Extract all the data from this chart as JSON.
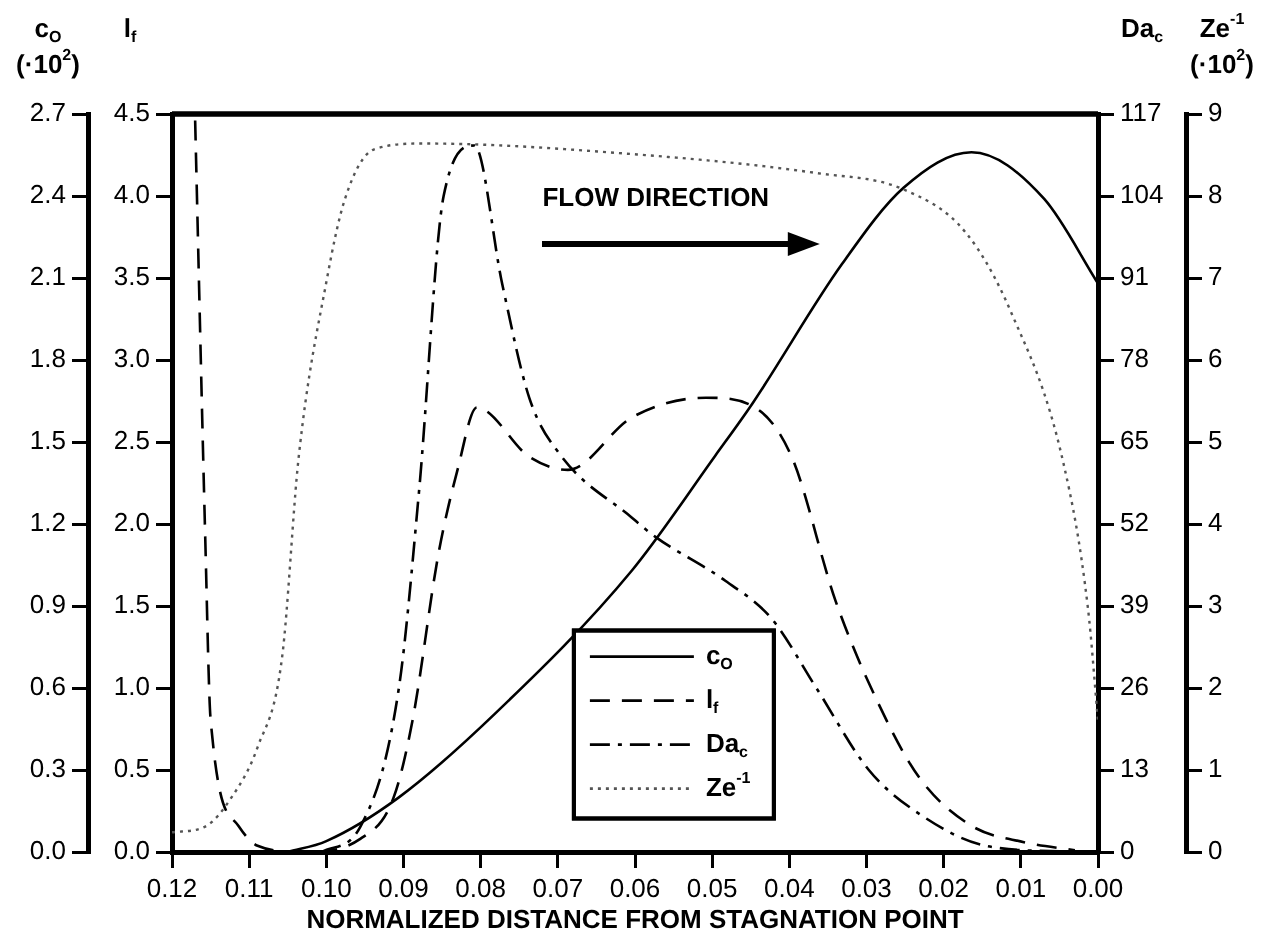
{
  "chart_data": [
    {
      "type": "line",
      "xlabel": "NORMALIZED DISTANCE FROM STAGNATION POINT",
      "ylabel": "c$_{O}$\n(·10$^{2}$)",
      "y2label": "l$_{f}$",
      "xlim": [
        0.12,
        0.0
      ],
      "xticks": [
        0.12,
        0.11,
        {
          "value": 0.1,
          "label": "0.10"
        },
        0.09,
        0.08,
        0.07,
        0.06,
        0.05,
        0.04,
        0.03,
        0.02,
        0.01,
        {
          "value": 0,
          "label": "0.00"
        }
      ],
      "ylim": [
        0,
        2.7
      ],
      "yticks": [
        {
          "value": 0,
          "label": "0.0"
        },
        0.3,
        0.6,
        0.9,
        1.2,
        1.5,
        1.8,
        2.1,
        2.4,
        2.7
      ],
      "y2lim": [
        0,
        4.5
      ],
      "y2ticks": [
        {
          "value": 0,
          "label": "0.0"
        },
        0.5,
        {
          "value": 1,
          "label": "1.0"
        },
        1.5,
        {
          "value": 2,
          "label": "2.0"
        },
        2.5,
        {
          "value": 3,
          "label": "3.0"
        },
        3.5,
        {
          "value": 4,
          "label": "4.0"
        },
        4.5
      ],
      "grid": false,
      "legend": "bottom",
      "marker": "none",
      "annotations": [
        "FLOW DIRECTION"
      ],
      "series": [
        {
          "name": "c$_{O}$",
          "color": "#000000",
          "line_style": "solid",
          "x": [
            0.105,
            0.1,
            0.0906,
            0.078,
            0.0604,
            0.0496,
            0.0448,
            0.0332,
            0.0252,
            0.0164,
            0.007,
            0
          ],
          "values": [
            0,
            0.04,
            0.2,
            0.51,
            1.03,
            1.45,
            1.64,
            2.15,
            2.43,
            2.56,
            2.39,
            2.08
          ]
        },
        {
          "name": "l$_{f}$",
          "color": "#000000",
          "line_style": "dashed",
          "axis": "y2",
          "x": [
            0.117,
            0.1157,
            0.115,
            0.1114,
            0.109,
            0.103,
            0.0956,
            0.0913,
            0.0888,
            0.0855,
            0.083,
            0.0805,
            0.0737,
            0.0687,
            0.0604,
            0.0508,
            0.0448,
            0.0397,
            0.034,
            0.0282,
            0.0231,
            0.0164,
            0.0096,
            0.003
          ],
          "values": [
            4.46,
            1.93,
            0.81,
            0.16,
            0.04,
            0,
            0.08,
            0.33,
            0.81,
            1.81,
            2.33,
            2.71,
            2.41,
            2.33,
            2.65,
            2.77,
            2.72,
            2.41,
            1.53,
            0.88,
            0.45,
            0.16,
            0.06,
            0.01
          ]
        }
      ]
    },
    {
      "type": "line",
      "ylabel": "Da$_{c}$",
      "y2label": "Ze$^{-1}$\n(·10$^{2}$)",
      "tick_labels": "y",
      "xlim": [
        0.12,
        0.0
      ],
      "ylim": [
        0,
        117
      ],
      "yticks": [
        0,
        13,
        26,
        39,
        52,
        65,
        78,
        91,
        104,
        117
      ],
      "y2lim": [
        0,
        9
      ],
      "y2ticks": [
        0,
        1,
        2,
        3,
        4,
        5,
        6,
        7,
        8,
        9
      ],
      "grid": false,
      "legend": "bottom",
      "marker": "none",
      "series": [
        {
          "name": "Da$_{c}$",
          "color": "#000000",
          "line_style": "dashdot",
          "x": [
            0.1006,
            0.0956,
            0.0906,
            0.088,
            0.0848,
            0.0808,
            0.0772,
            0.0737,
            0.0697,
            0.0604,
            0.0574,
            0.0483,
            0.0423,
            0.0365,
            0.0297,
            0.0231,
            0.0146,
            0.003
          ],
          "values": [
            0,
            4,
            26,
            57,
            104,
            112,
            90,
            72,
            63,
            53,
            50,
            43,
            37,
            26,
            13,
            6,
            1,
            0
          ]
        },
        {
          "name": "Ze$^{-1}$",
          "color": "#555555",
          "line_style": "dotted",
          "axis": "y2",
          "x": [
            0.12,
            0.1157,
            0.1124,
            0.1089,
            0.1057,
            0.1036,
            0.0999,
            0.0976,
            0.0938,
            0.0873,
            0.0616,
            0.0365,
            0.0252,
            0.0171,
            0.0113,
            0.0045,
            0.0013,
            0
          ],
          "values": [
            0.24,
            0.31,
            0.65,
            1.28,
            2.4,
            4.8,
            7.0,
            7.96,
            8.57,
            8.64,
            8.52,
            8.28,
            8.08,
            7.55,
            6.59,
            4.75,
            2.97,
            1.6
          ]
        }
      ]
    }
  ]
}
